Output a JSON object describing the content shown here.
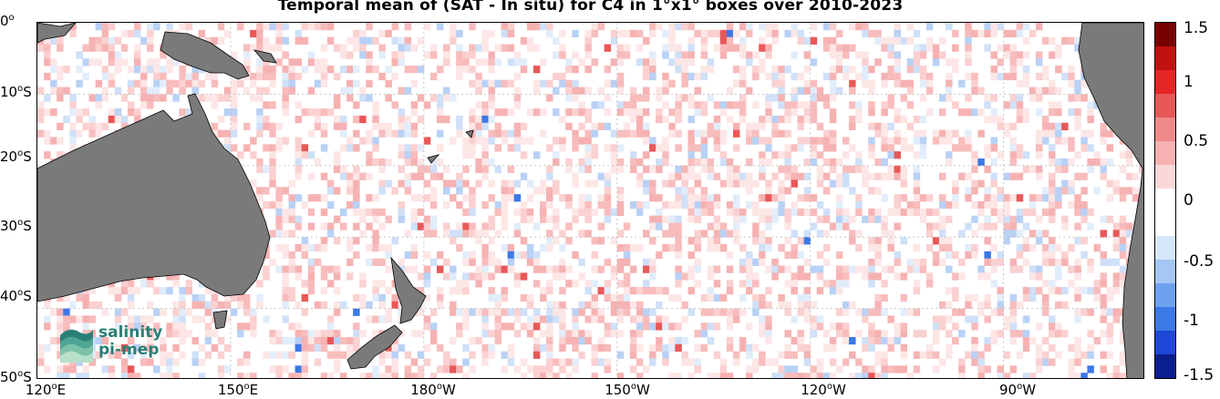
{
  "title": "Temporal mean of (SAT - In situ) for C4 in 1°x1° boxes over 2010-2023",
  "map": {
    "lon_range": [
      120,
      292
    ],
    "lat_range": [
      -50,
      0
    ],
    "lat_labels": [
      {
        "deg": "0",
        "hemi": ""
      },
      {
        "deg": "10",
        "hemi": "S"
      },
      {
        "deg": "20",
        "hemi": "S"
      },
      {
        "deg": "30",
        "hemi": "S"
      },
      {
        "deg": "40",
        "hemi": "S"
      },
      {
        "deg": "50",
        "hemi": "S"
      }
    ],
    "lon_labels": [
      {
        "deg": "120",
        "hemi": "E"
      },
      {
        "deg": "150",
        "hemi": "E"
      },
      {
        "deg": "180",
        "hemi": "W"
      },
      {
        "deg": "150",
        "hemi": "W"
      },
      {
        "deg": "120",
        "hemi": "W"
      },
      {
        "deg": "90",
        "hemi": "W"
      }
    ],
    "grid": true,
    "land_color": "#7a7a7a"
  },
  "colorbar": {
    "ticks": [
      "1.5",
      "1",
      "0.5",
      "0",
      "-0.5",
      "-1",
      "-1.5"
    ],
    "range": [
      -1.5,
      1.5
    ],
    "colors": [
      "#0a1f8f",
      "#1e46d8",
      "#3c78e6",
      "#6ea2ee",
      "#a6c6f4",
      "#d6e6fa",
      "#ffffff",
      "#ffffff",
      "#fbd8d8",
      "#f6b2b2",
      "#f08a8a",
      "#e85858",
      "#e62525",
      "#c01010",
      "#7a0000"
    ]
  },
  "logo": {
    "line1": "salinity",
    "line2": "pi-mep"
  }
}
